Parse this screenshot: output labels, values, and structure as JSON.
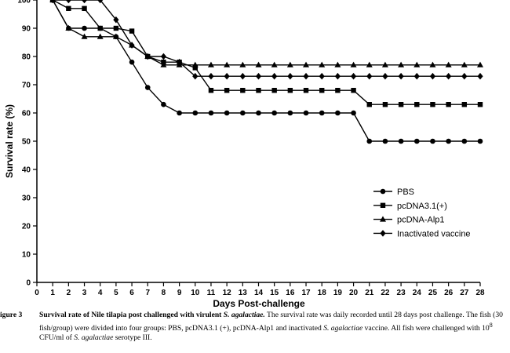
{
  "chart_data": {
    "type": "line",
    "ylabel": "Survival rate (%)",
    "xlabel": "Days Post-challenge",
    "xlim": [
      0,
      28
    ],
    "ylim": [
      0,
      100
    ],
    "x_ticks": [
      0,
      1,
      2,
      3,
      4,
      5,
      6,
      7,
      8,
      9,
      10,
      11,
      12,
      13,
      14,
      15,
      16,
      17,
      18,
      19,
      20,
      21,
      22,
      23,
      24,
      25,
      26,
      27,
      28
    ],
    "y_ticks": [
      0,
      10,
      20,
      30,
      40,
      50,
      60,
      70,
      80,
      90,
      100
    ],
    "legend_position": "center-right",
    "grid": false,
    "x": [
      1,
      2,
      3,
      4,
      5,
      6,
      7,
      8,
      9,
      10,
      11,
      12,
      13,
      14,
      15,
      16,
      17,
      18,
      19,
      20,
      21,
      22,
      23,
      24,
      25,
      26,
      27,
      28
    ],
    "series": [
      {
        "name": "PBS",
        "marker": "circle",
        "values": [
          100,
          90,
          90,
          90,
          87,
          78,
          69,
          63,
          60,
          60,
          60,
          60,
          60,
          60,
          60,
          60,
          60,
          60,
          60,
          60,
          50,
          50,
          50,
          50,
          50,
          50,
          50,
          50
        ]
      },
      {
        "name": "pcDNA3.1(+)",
        "marker": "square",
        "values": [
          100,
          97,
          97,
          90,
          90,
          89,
          80,
          78,
          78,
          76,
          68,
          68,
          68,
          68,
          68,
          68,
          68,
          68,
          68,
          68,
          63,
          63,
          63,
          63,
          63,
          63,
          63,
          63
        ]
      },
      {
        "name": "pcDNA-Alp1",
        "marker": "triangle",
        "values": [
          100,
          90,
          87,
          87,
          87,
          84,
          80,
          77,
          77,
          77,
          77,
          77,
          77,
          77,
          77,
          77,
          77,
          77,
          77,
          77,
          77,
          77,
          77,
          77,
          77,
          77,
          77,
          77
        ]
      },
      {
        "name": "Inactivated vaccine",
        "marker": "diamond",
        "values": [
          100,
          100,
          100,
          100,
          93,
          84,
          80,
          80,
          78,
          73,
          73,
          73,
          73,
          73,
          73,
          73,
          73,
          73,
          73,
          73,
          73,
          73,
          73,
          73,
          73,
          73,
          73,
          73
        ]
      }
    ]
  },
  "caption": {
    "label": "igure 3",
    "title_part": "Survival rate of Nile tilapia post challenged with virulent ",
    "title_italic": "S. agalactiae.",
    "text1": " The survival rate was daily recorded until 28 days post challenge. The fish (30 fish/group) were divided into four groups: PBS, pcDNA3.1 (+), pcDNA-Alp1 and inactivated ",
    "italic1": "S. agalactiae",
    "text2": " vaccine. All fish were challenged with 10",
    "superscript": "8",
    "text3": " CFU/ml of ",
    "italic2": "S. agalactiae",
    "text4": " serotype III."
  }
}
